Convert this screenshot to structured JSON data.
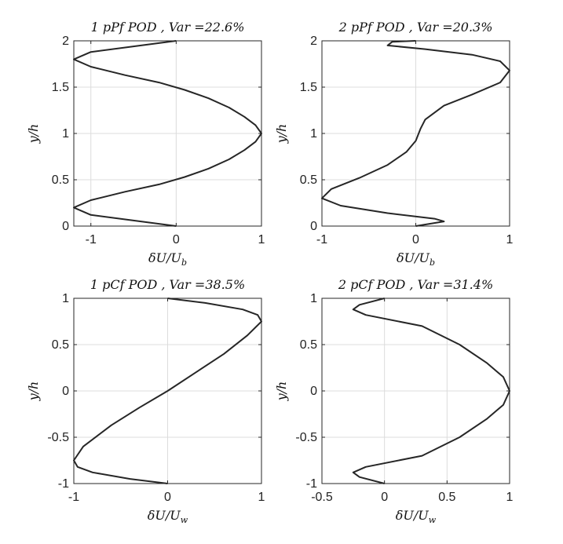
{
  "chart_data": [
    {
      "type": "line",
      "title": "1 pPf POD ,  Var =22.6%",
      "xlabel": "δU/U_b",
      "ylabel": "y/h",
      "xlim": [
        -1.2,
        1
      ],
      "ylim": [
        0,
        2
      ],
      "xticks": [
        "-1",
        "0",
        "1"
      ],
      "xtick_values": [
        -1,
        0,
        1
      ],
      "yticks": [
        "0",
        "0.5",
        "1",
        "1.5",
        "2"
      ],
      "ytick_values": [
        0,
        0.5,
        1,
        1.5,
        2
      ],
      "grid": true,
      "series": [
        {
          "x": [
            0,
            -0.5,
            -1.0,
            -1.2,
            -1.0,
            -0.6,
            -0.2,
            0.1,
            0.38,
            0.62,
            0.8,
            0.93,
            1.0,
            0.93,
            0.8,
            0.62,
            0.38,
            0.1,
            -0.2,
            -0.6,
            -1.0,
            -1.2,
            -1.0,
            -0.5,
            0
          ],
          "y": [
            0,
            0.06,
            0.12,
            0.2,
            0.28,
            0.37,
            0.45,
            0.53,
            0.62,
            0.72,
            0.82,
            0.91,
            1.0,
            1.09,
            1.18,
            1.28,
            1.38,
            1.47,
            1.55,
            1.63,
            1.72,
            1.8,
            1.88,
            1.94,
            2.0
          ]
        }
      ]
    },
    {
      "type": "line",
      "title": "2 pPf POD ,  Var =20.3%",
      "xlabel": "δU/U_b",
      "ylabel": "y/h",
      "xlim": [
        -1,
        1
      ],
      "ylim": [
        0,
        2
      ],
      "xticks": [
        "-1",
        "0",
        "1"
      ],
      "xtick_values": [
        -1,
        0,
        1
      ],
      "yticks": [
        "0",
        "0.5",
        "1",
        "1.5",
        "2"
      ],
      "ytick_values": [
        0,
        0.5,
        1,
        1.5,
        2
      ],
      "grid": true,
      "series": [
        {
          "x": [
            0,
            0.3,
            0.2,
            -0.3,
            -0.8,
            -1.0,
            -0.9,
            -0.6,
            -0.3,
            -0.1,
            0,
            0.05,
            0.1,
            0.3,
            0.6,
            0.9,
            1.0,
            0.9,
            0.6,
            0.1,
            -0.3,
            -0.25,
            0
          ],
          "y": [
            0,
            0.05,
            0.08,
            0.14,
            0.22,
            0.3,
            0.4,
            0.52,
            0.66,
            0.8,
            0.92,
            1.05,
            1.15,
            1.3,
            1.42,
            1.55,
            1.68,
            1.78,
            1.85,
            1.91,
            1.95,
            1.99,
            2.0
          ]
        }
      ]
    },
    {
      "type": "line",
      "title": "1 pCf POD ,  Var =38.5%",
      "xlabel": "δU/U_w",
      "ylabel": "y/h",
      "xlim": [
        -1,
        1
      ],
      "ylim": [
        -1,
        1
      ],
      "xticks": [
        "-1",
        "0",
        "1"
      ],
      "xtick_values": [
        -1,
        0,
        1
      ],
      "yticks": [
        "-1",
        "-0.5",
        "0",
        "0.5",
        "1"
      ],
      "ytick_values": [
        -1,
        -0.5,
        0,
        0.5,
        1
      ],
      "grid": true,
      "series": [
        {
          "x": [
            0,
            -0.4,
            -0.8,
            -0.96,
            -1.0,
            -0.9,
            -0.6,
            -0.3,
            0,
            0.3,
            0.6,
            0.85,
            1.0,
            0.96,
            0.8,
            0.4,
            0
          ],
          "y": [
            -1,
            -0.95,
            -0.88,
            -0.82,
            -0.75,
            -0.6,
            -0.37,
            -0.18,
            0,
            0.2,
            0.4,
            0.6,
            0.75,
            0.82,
            0.88,
            0.95,
            1
          ]
        }
      ]
    },
    {
      "type": "line",
      "title": "2 pCf POD ,  Var =31.4%",
      "xlabel": "δU/U_w",
      "ylabel": "y/h",
      "xlim": [
        -0.5,
        1
      ],
      "ylim": [
        -1,
        1
      ],
      "xticks": [
        "-0.5",
        "0",
        "0.5",
        "1"
      ],
      "xtick_values": [
        -0.5,
        0,
        0.5,
        1
      ],
      "yticks": [
        "-1",
        "-0.5",
        "0",
        "0.5",
        "1"
      ],
      "ytick_values": [
        -1,
        -0.5,
        0,
        0.5,
        1
      ],
      "grid": true,
      "series": [
        {
          "x": [
            0,
            -0.2,
            -0.25,
            -0.15,
            0.3,
            0.6,
            0.82,
            0.95,
            1.0,
            0.95,
            0.82,
            0.6,
            0.3,
            -0.15,
            -0.25,
            -0.2,
            0
          ],
          "y": [
            -1,
            -0.93,
            -0.88,
            -0.82,
            -0.7,
            -0.5,
            -0.3,
            -0.15,
            0,
            0.15,
            0.3,
            0.5,
            0.7,
            0.82,
            0.88,
            0.93,
            1
          ]
        }
      ]
    }
  ]
}
